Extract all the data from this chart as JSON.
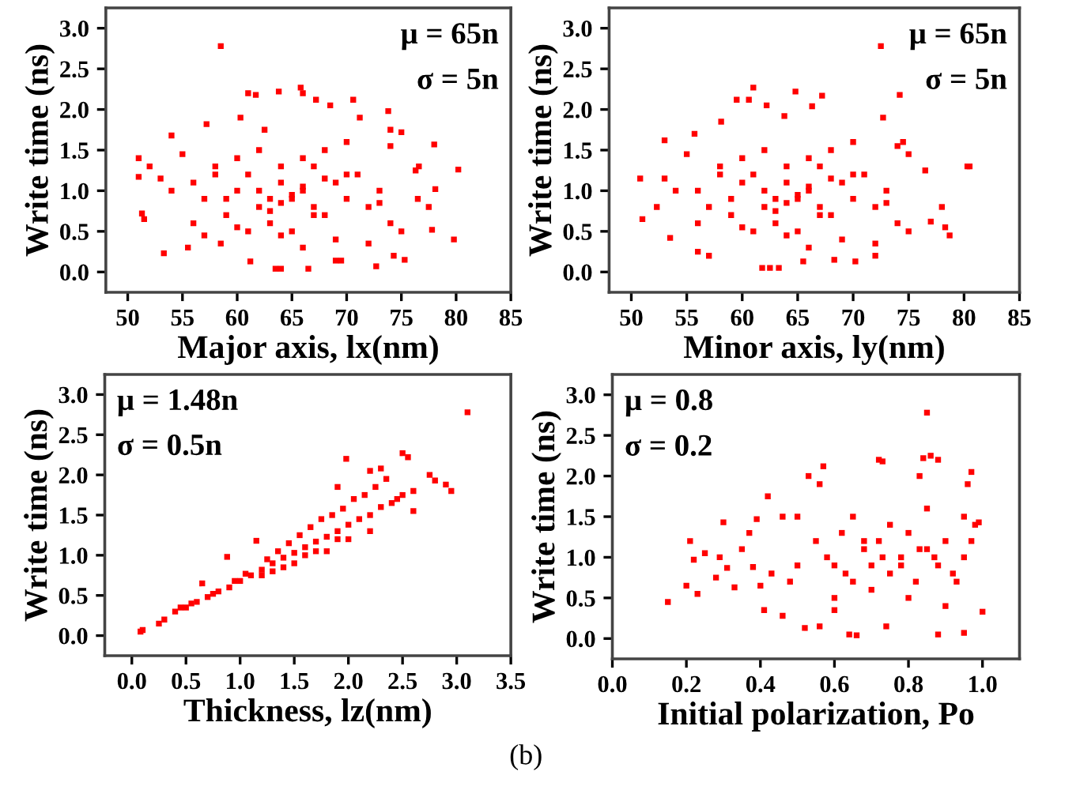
{
  "chart_data": [
    {
      "type": "scatter",
      "xlabel": "Major axis, lx(nm)",
      "ylabel": "Write time (ns)",
      "annotations": [
        "μ = 65n",
        "σ = 5n"
      ],
      "xlim": [
        48,
        85
      ],
      "ylim": [
        -0.25,
        3.25
      ],
      "xticks": [
        50,
        55,
        60,
        65,
        70,
        75,
        80,
        85
      ],
      "yticks": [
        {
          "value": 0,
          "label": "0.0"
        },
        0.5,
        {
          "value": 1,
          "label": "1.0"
        },
        1.5,
        {
          "value": 2,
          "label": "2.0"
        },
        2.5,
        {
          "value": 3,
          "label": "3.0"
        }
      ],
      "grid": false,
      "legend": false,
      "marker": "square",
      "series": [
        {
          "color": "#ff0000",
          "x": [
            58.5,
            65.8,
            66,
            61,
            61.7,
            63.8,
            67.2,
            70.6,
            68.5,
            73.8,
            71.2,
            74,
            75,
            78,
            80.2,
            79.8,
            77.8,
            75.3,
            72.7,
            66.5,
            63.5,
            64,
            61.2,
            53.3,
            51,
            51,
            51.3,
            51.5,
            52,
            54,
            55.5,
            57.2,
            58.5,
            60.3,
            62.5,
            57,
            69,
            69.5,
            74.3,
            76.3,
            76.6,
            77.5,
            78.1,
            76.5,
            56,
            57,
            58,
            59,
            60,
            61,
            62,
            63,
            64,
            65,
            66,
            67,
            68,
            69,
            70,
            71,
            72,
            73,
            74,
            60,
            61,
            62,
            63,
            64,
            65,
            66,
            67,
            68,
            69,
            70,
            62,
            63,
            64,
            65,
            66,
            67,
            68,
            59,
            60,
            64,
            66,
            70,
            72,
            55,
            56,
            58,
            73,
            74,
            75,
            54,
            53
          ],
          "values": [
            2.78,
            2.27,
            2.2,
            2.2,
            2.18,
            2.22,
            2.12,
            2.12,
            2.05,
            1.98,
            1.9,
            1.75,
            1.72,
            1.57,
            1.26,
            0.4,
            0.52,
            0.15,
            0.07,
            0.04,
            0.04,
            0.04,
            0.13,
            0.23,
            1.4,
            1.17,
            0.72,
            0.65,
            1.3,
            1.68,
            0.3,
            1.82,
            0.35,
            1.9,
            1.75,
            0.45,
            0.14,
            0.14,
            0.2,
            1.25,
            1.3,
            0.8,
            1.02,
            0.9,
            1.1,
            0.9,
            1.3,
            0.7,
            1.0,
            1.2,
            0.8,
            0.6,
            1.1,
            0.9,
            1.0,
            1.3,
            0.7,
            1.1,
            0.9,
            1.2,
            0.8,
            1.0,
            0.6,
            1.4,
            0.5,
            1.5,
            0.9,
            1.3,
            0.5,
            1.4,
            0.7,
            1.5,
            0.4,
            1.2,
            1.0,
            0.75,
            0.85,
            0.95,
            1.05,
            0.8,
            1.15,
            0.9,
            0.55,
            0.45,
            0.3,
            1.6,
            0.35,
            1.45,
            0.6,
            1.2,
            0.85,
            1.55,
            0.5,
            1.0,
            1.15
          ]
        }
      ]
    },
    {
      "type": "scatter",
      "xlabel": "Minor axis, ly(nm)",
      "ylabel": "Write time (ns)",
      "annotations": [
        "μ = 65n",
        "σ = 5n"
      ],
      "xlim": [
        48,
        85
      ],
      "ylim": [
        -0.25,
        3.25
      ],
      "xticks": [
        50,
        55,
        60,
        65,
        70,
        75,
        80,
        85
      ],
      "yticks": [
        {
          "value": 0,
          "label": "0.0"
        },
        0.5,
        {
          "value": 1,
          "label": "1.0"
        },
        1.5,
        {
          "value": 2,
          "label": "2.0"
        },
        2.5,
        {
          "value": 3,
          "label": "3.0"
        }
      ],
      "grid": false,
      "legend": false,
      "marker": "square",
      "series": [
        {
          "color": "#ff0000",
          "x": [
            72.5,
            74.2,
            72.7,
            61,
            60.6,
            59.5,
            64.8,
            67.2,
            66.3,
            62.2,
            63.8,
            58.1,
            53,
            50.8,
            51,
            52.3,
            53.5,
            56,
            57,
            61.8,
            62.5,
            63.3,
            65.5,
            68.3,
            70.2,
            72,
            77,
            78,
            78.3,
            78.7,
            80.3,
            80.5,
            76.5,
            75,
            74.5,
            55.7,
            56,
            57,
            58,
            59,
            60,
            61,
            62,
            63,
            64,
            65,
            66,
            67,
            68,
            69,
            70,
            71,
            72,
            73,
            74,
            60,
            61,
            62,
            63,
            64,
            65,
            66,
            67,
            68,
            69,
            70,
            62,
            63,
            64,
            65,
            66,
            67,
            68,
            59,
            60,
            64,
            66,
            70,
            72,
            55,
            56,
            58,
            73,
            74,
            75,
            54,
            53
          ],
          "values": [
            2.78,
            2.18,
            1.9,
            2.27,
            2.12,
            2.12,
            2.22,
            2.17,
            2.04,
            2.05,
            1.92,
            1.85,
            1.62,
            1.15,
            0.65,
            0.8,
            0.42,
            0.25,
            0.2,
            0.05,
            0.05,
            0.05,
            0.13,
            0.15,
            0.13,
            0.2,
            0.62,
            0.8,
            0.55,
            0.45,
            1.3,
            1.3,
            1.25,
            1.45,
            1.6,
            1.7,
            1.0,
            0.8,
            1.3,
            0.7,
            1.1,
            1.2,
            0.8,
            0.6,
            1.1,
            0.9,
            1.0,
            1.3,
            0.7,
            1.1,
            0.9,
            1.2,
            0.8,
            1.0,
            0.6,
            1.4,
            0.5,
            1.5,
            0.9,
            1.3,
            0.5,
            1.4,
            0.7,
            1.5,
            0.4,
            1.2,
            1.0,
            0.75,
            0.85,
            0.95,
            1.05,
            0.8,
            1.15,
            0.9,
            0.55,
            0.45,
            0.3,
            1.6,
            0.35,
            1.45,
            0.6,
            1.2,
            0.85,
            1.55,
            0.5,
            1.0,
            1.15
          ]
        }
      ]
    },
    {
      "type": "scatter",
      "xlabel": "Thickness, lz(nm)",
      "ylabel": "Write time (ns)",
      "annotations": [
        "μ = 1.48n",
        "σ = 0.5n",
        "(b)"
      ],
      "xlim": [
        -0.25,
        3.5
      ],
      "ylim": [
        -0.25,
        3.25
      ],
      "xticks": [
        {
          "value": 0,
          "label": "0.0"
        },
        0.5,
        {
          "value": 1,
          "label": "1.0"
        },
        1.5,
        {
          "value": 2,
          "label": "2.0"
        },
        2.5,
        {
          "value": 3,
          "label": "3.0"
        },
        3.5
      ],
      "yticks": [
        {
          "value": 0,
          "label": "0.0"
        },
        0.5,
        {
          "value": 1,
          "label": "1.0"
        },
        1.5,
        {
          "value": 2,
          "label": "2.0"
        },
        2.5,
        {
          "value": 3,
          "label": "3.0"
        }
      ],
      "grid": false,
      "legend": false,
      "marker": "square",
      "series": [
        {
          "color": "#ff0000",
          "x": [
            3.1,
            2.95,
            2.9,
            2.75,
            2.8,
            2.5,
            2.55,
            1.98,
            2.2,
            2.3,
            1.9,
            1.15,
            0.88,
            0.08,
            0.1,
            0.25,
            0.65,
            0.3,
            0.4,
            0.5,
            0.6,
            0.7,
            0.8,
            0.9,
            1.0,
            1.1,
            1.2,
            1.3,
            1.4,
            1.5,
            1.6,
            1.7,
            1.8,
            1.9,
            2.0,
            2.1,
            2.2,
            2.3,
            2.4,
            2.5,
            2.6,
            0.45,
            0.55,
            0.75,
            0.95,
            1.05,
            1.25,
            1.35,
            1.45,
            1.55,
            1.65,
            1.75,
            1.85,
            1.95,
            2.05,
            2.15,
            2.25,
            2.35,
            2.45,
            2.6,
            1.2,
            1.4,
            1.6,
            1.8,
            2.0,
            2.2,
            1.3,
            1.5,
            1.7,
            1.9
          ],
          "values": [
            2.78,
            1.8,
            1.88,
            2.0,
            1.93,
            2.27,
            2.22,
            2.2,
            2.05,
            2.08,
            1.85,
            1.18,
            0.98,
            0.05,
            0.07,
            0.15,
            0.65,
            0.2,
            0.3,
            0.35,
            0.42,
            0.48,
            0.55,
            0.6,
            0.68,
            0.75,
            0.82,
            0.9,
            0.97,
            1.03,
            1.1,
            1.17,
            1.23,
            1.3,
            1.38,
            1.45,
            1.5,
            1.6,
            1.65,
            1.75,
            1.8,
            0.35,
            0.4,
            0.52,
            0.68,
            0.77,
            0.95,
            1.05,
            1.15,
            1.25,
            1.35,
            1.45,
            1.5,
            1.58,
            1.7,
            1.75,
            1.85,
            1.95,
            1.7,
            1.55,
            0.75,
            0.85,
            1.0,
            1.05,
            1.2,
            1.3,
            0.8,
            0.9,
            1.05,
            1.2
          ]
        }
      ]
    },
    {
      "type": "scatter",
      "xlabel": "Initial polarization, Po",
      "ylabel": "Write time (ns)",
      "annotations": [
        "μ = 0.8",
        "σ = 0.2"
      ],
      "xlim": [
        0,
        1.1
      ],
      "ylim": [
        -0.25,
        3.25
      ],
      "xticks": [
        {
          "value": 0,
          "label": "0.0"
        },
        0.2,
        0.4,
        0.6,
        0.8,
        {
          "value": 1,
          "label": "1.0"
        }
      ],
      "yticks": [
        {
          "value": 0,
          "label": "0.0"
        },
        0.5,
        {
          "value": 1,
          "label": "1.0"
        },
        1.5,
        {
          "value": 2,
          "label": "2.0"
        },
        2.5,
        {
          "value": 3,
          "label": "3.0"
        }
      ],
      "grid": false,
      "legend": false,
      "marker": "square",
      "series": [
        {
          "color": "#ff0000",
          "x": [
            0.15,
            0.2,
            0.21,
            0.22,
            0.23,
            0.25,
            0.28,
            0.3,
            0.29,
            0.31,
            0.33,
            0.35,
            0.37,
            0.39,
            0.38,
            0.4,
            0.41,
            0.42,
            0.43,
            0.46,
            0.46,
            0.5,
            0.53,
            0.52,
            0.56,
            0.57,
            0.56,
            0.6,
            0.64,
            0.66,
            0.72,
            0.73,
            0.74,
            0.85,
            0.86,
            0.84,
            0.88,
            0.83,
            0.88,
            0.95,
            0.97,
            0.96,
            0.99,
            1.0,
            0.55,
            0.6,
            0.62,
            0.65,
            0.68,
            0.7,
            0.72,
            0.75,
            0.78,
            0.8,
            0.82,
            0.85,
            0.88,
            0.9,
            0.92,
            0.95,
            0.98,
            0.6,
            0.65,
            0.7,
            0.75,
            0.8,
            0.85,
            0.9,
            0.95,
            0.58,
            0.63,
            0.68,
            0.73,
            0.78,
            0.83,
            0.87,
            0.93,
            0.97,
            0.5,
            0.48
          ],
          "values": [
            0.45,
            0.65,
            1.2,
            0.97,
            0.55,
            1.05,
            0.75,
            1.43,
            1.0,
            0.87,
            0.63,
            1.1,
            1.3,
            1.47,
            0.88,
            0.65,
            0.35,
            1.75,
            0.8,
            1.5,
            0.28,
            1.5,
            2.0,
            0.13,
            1.9,
            2.12,
            0.15,
            0.35,
            0.05,
            0.04,
            2.2,
            2.18,
            0.15,
            2.78,
            2.25,
            2.22,
            2.2,
            2.0,
            0.05,
            0.07,
            2.05,
            1.9,
            1.43,
            0.33,
            1.2,
            0.9,
            1.3,
            0.7,
            1.1,
            0.9,
            1.2,
            0.8,
            1.0,
            1.3,
            0.7,
            1.1,
            0.9,
            1.2,
            0.8,
            1.0,
            1.4,
            0.5,
            1.5,
            0.6,
            1.4,
            0.5,
            1.6,
            0.4,
            1.5,
            1.0,
            0.8,
            1.2,
            1.0,
            0.9,
            1.1,
            1.0,
            0.7,
            1.2,
            0.9,
            0.7
          ]
        }
      ]
    }
  ]
}
